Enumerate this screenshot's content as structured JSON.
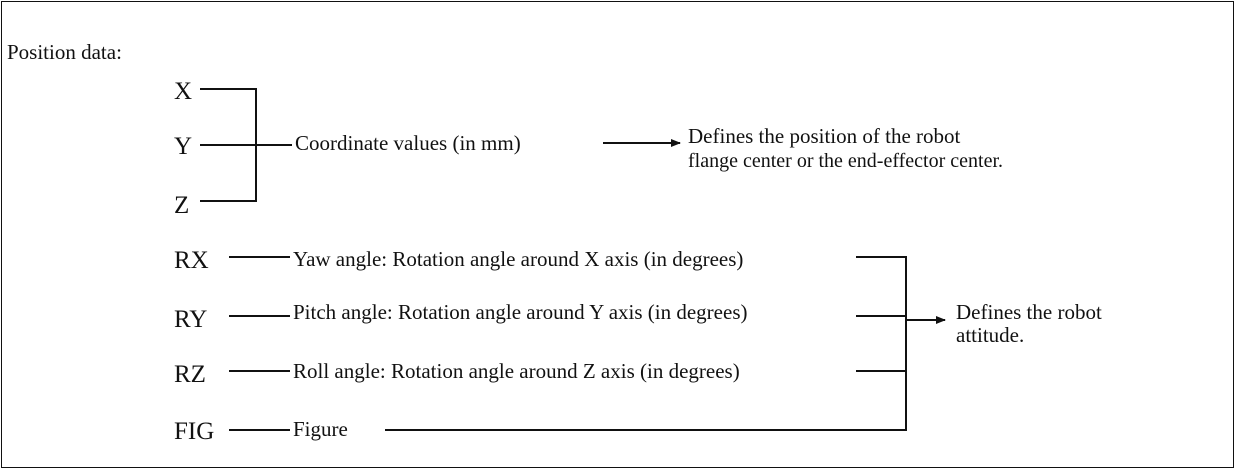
{
  "title": "Position data:",
  "coordinates": {
    "items": [
      "X",
      "Y",
      "Z"
    ],
    "description": "Coordinate values (in mm)",
    "result_lines": [
      "Defines the position of the robot",
      "flange center or the end-effector center."
    ]
  },
  "attitude": {
    "items": [
      {
        "label": "RX",
        "description": "Yaw angle: Rotation angle around X axis (in degrees)"
      },
      {
        "label": "RY",
        "description": "Pitch angle: Rotation angle around Y axis (in degrees)"
      },
      {
        "label": "RZ",
        "description": "Roll angle: Rotation angle around Z axis (in degrees)"
      },
      {
        "label": "FIG",
        "description": "Figure"
      }
    ],
    "result_lines": [
      "Defines the robot",
      "attitude."
    ]
  }
}
